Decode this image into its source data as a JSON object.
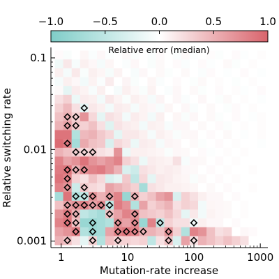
{
  "chart_data": {
    "type": "heatmap",
    "title": "",
    "colorbar": {
      "label": "Relative error (median)",
      "range": [
        -1.0,
        1.0
      ],
      "ticks": [
        -1.0,
        -0.5,
        0.0,
        0.5,
        1.0
      ],
      "tick_labels": [
        "−1.0",
        "−0.5",
        "0.0",
        "0.5",
        "1.0"
      ],
      "colors": {
        "negative": "#7fcdc8",
        "zero": "#ffffff",
        "positive": "#d9646c"
      }
    },
    "x_axis": {
      "label": "Mutation-rate increase",
      "scale": "log",
      "range": [
        0.7,
        1300
      ],
      "ticks": [
        1,
        10,
        100,
        1000
      ],
      "tick_labels": [
        "1",
        "10",
        "100",
        "1000"
      ]
    },
    "y_axis": {
      "label": "Relative switching rate",
      "scale": "log",
      "range": [
        0.00085,
        0.13
      ],
      "ticks": [
        0.001,
        0.01,
        0.1
      ],
      "tick_labels": [
        "0.001",
        "0.01",
        "0.1"
      ]
    },
    "grid": {
      "x_start": 0.8,
      "x_end": 1200,
      "y_start": 0.00091,
      "y_end": 0.12,
      "n_cols": 25,
      "n_rows": 22
    },
    "cells": [
      [
        0.03,
        -0.05,
        0.0,
        0.06,
        -0.04,
        0.05,
        -0.02,
        0.0,
        0.04,
        -0.03,
        0.0,
        -0.04,
        0.03,
        0.0,
        -0.04,
        0.04,
        -0.02,
        0.0,
        0.02,
        -0.03,
        0.0,
        0.03,
        -0.02,
        0.0,
        0.02
      ],
      [
        -0.12,
        0.15,
        -0.06,
        0.1,
        0.05,
        -0.08,
        0.06,
        0.0,
        -0.04,
        0.05,
        0.0,
        -0.05,
        0.04,
        0.0,
        0.03,
        -0.04,
        0.0,
        0.03,
        -0.02,
        0.0,
        0.04,
        -0.03,
        0.0,
        0.02,
        0.0
      ],
      [
        0.1,
        -0.08,
        0.14,
        -0.05,
        0.1,
        0.06,
        -0.07,
        0.08,
        0.0,
        -0.06,
        0.05,
        0.0,
        0.04,
        -0.03,
        0.0,
        0.04,
        0.0,
        -0.04,
        0.03,
        0.0,
        -0.02,
        0.0,
        0.03,
        0.0,
        -0.02
      ],
      [
        -0.08,
        0.1,
        0.05,
        -0.1,
        0.08,
        -0.04,
        0.12,
        0.0,
        0.07,
        -0.05,
        0.0,
        0.06,
        -0.04,
        0.0,
        0.03,
        0.0,
        -0.03,
        0.04,
        0.0,
        0.02,
        0.0,
        -0.03,
        0.0,
        0.02,
        0.0
      ],
      [
        0.04,
        -0.2,
        0.12,
        0.08,
        -0.06,
        0.1,
        0.0,
        -0.08,
        0.1,
        0.04,
        -0.05,
        0.08,
        0.0,
        -0.04,
        0.05,
        0.0,
        0.04,
        -0.03,
        0.0,
        0.03,
        0.0,
        0.02,
        -0.02,
        0.0,
        0.03
      ],
      [
        0.2,
        0.3,
        -0.15,
        0.12,
        0.1,
        -0.1,
        0.15,
        0.08,
        -0.05,
        0.1,
        0.06,
        -0.08,
        0.07,
        0.0,
        0.05,
        -0.04,
        0.0,
        0.05,
        0.0,
        -0.03,
        0.04,
        0.0,
        0.02,
        0.0,
        -0.02
      ],
      [
        0.3,
        0.45,
        0.2,
        -0.2,
        0.15,
        0.1,
        -0.1,
        0.12,
        0.1,
        -0.08,
        0.08,
        0.05,
        -0.06,
        0.06,
        0.0,
        0.05,
        -0.04,
        0.0,
        0.04,
        0.0,
        -0.03,
        0.03,
        0.0,
        0.02,
        0.0
      ],
      [
        0.4,
        0.5,
        0.3,
        0.7,
        0.25,
        -0.2,
        0.2,
        0.15,
        -0.1,
        0.12,
        0.08,
        -0.1,
        0.1,
        0.0,
        0.06,
        -0.05,
        0.05,
        0.0,
        0.04,
        -0.03,
        0.0,
        0.03,
        0.0,
        -0.02,
        0.02
      ],
      [
        0.5,
        0.6,
        0.35,
        0.3,
        0.4,
        0.2,
        -0.25,
        0.18,
        0.12,
        0.1,
        -0.1,
        0.1,
        0.08,
        -0.06,
        0.05,
        0.05,
        0.0,
        0.04,
        0.0,
        0.03,
        -0.03,
        0.0,
        0.02,
        0.0,
        0.02
      ],
      [
        0.9,
        0.9,
        -0.6,
        0.45,
        0.5,
        0.35,
        0.25,
        -0.2,
        0.15,
        0.15,
        0.1,
        -0.08,
        0.1,
        0.06,
        -0.05,
        0.04,
        0.05,
        0.0,
        0.03,
        0.0,
        0.04,
        0.0,
        -0.02,
        0.0,
        0.02
      ],
      [
        0.95,
        0.85,
        -0.7,
        0.55,
        0.4,
        0.35,
        -0.3,
        0.25,
        0.18,
        -0.15,
        0.12,
        0.1,
        -0.08,
        0.07,
        0.05,
        0.0,
        0.04,
        -0.03,
        0.0,
        0.03,
        0.0,
        0.02,
        0.0,
        0.0,
        -0.02
      ],
      [
        0.5,
        0.4,
        0.3,
        0.25,
        0.3,
        0.2,
        0.15,
        0.7,
        -0.15,
        0.1,
        0.1,
        0.08,
        0.06,
        -0.05,
        0.05,
        0.04,
        0.0,
        0.03,
        -0.02,
        0.0,
        0.02,
        0.0,
        0.02,
        0.0,
        0.0
      ],
      [
        0.8,
        0.6,
        0.7,
        0.9,
        0.7,
        0.6,
        0.7,
        0.8,
        0.3,
        0.2,
        -0.15,
        0.12,
        0.1,
        0.08,
        0.2,
        -0.06,
        0.05,
        0.04,
        0.0,
        0.03,
        0.0,
        0.02,
        0.0,
        0.0,
        0.0
      ],
      [
        0.85,
        0.9,
        0.5,
        0.75,
        0.8,
        0.85,
        0.7,
        0.5,
        -0.3,
        -0.4,
        0.2,
        0.15,
        0.1,
        0.12,
        0.1,
        0.05,
        0.04,
        0.0,
        0.03,
        0.0,
        0.02,
        0.0,
        0.0,
        0.02,
        0.0
      ],
      [
        0.9,
        0.8,
        0.3,
        0.2,
        0.4,
        0.25,
        -0.3,
        -0.2,
        0.35,
        -0.5,
        0.25,
        -0.2,
        0.15,
        0.12,
        0.08,
        0.06,
        -0.05,
        0.04,
        0.0,
        0.03,
        0.0,
        0.02,
        0.0,
        0.0,
        0.0
      ],
      [
        0.8,
        0.7,
        -0.4,
        0.35,
        0.25,
        0.2,
        0.6,
        0.5,
        0.4,
        0.3,
        -0.7,
        0.2,
        0.15,
        0.1,
        0.1,
        0.08,
        0.06,
        0.0,
        0.04,
        0.0,
        0.03,
        0.0,
        0.0,
        0.02,
        0.0
      ],
      [
        -0.7,
        0.9,
        -0.6,
        -0.5,
        0.7,
        0.5,
        0.6,
        0.8,
        -0.8,
        0.5,
        0.3,
        0.4,
        0.6,
        0.7,
        -0.3,
        0.3,
        0.2,
        0.1,
        0.05,
        0.05,
        0.0,
        0.03,
        0.0,
        0.0,
        0.0
      ],
      [
        0.4,
        0.6,
        0.7,
        0.8,
        0.6,
        0.75,
        -0.5,
        0.85,
        0.7,
        -0.6,
        0.6,
        0.3,
        0.4,
        0.5,
        0.2,
        0.3,
        0.25,
        -0.1,
        0.06,
        0.05,
        0.04,
        0.0,
        0.02,
        0.0,
        0.0
      ],
      [
        0.7,
        0.85,
        0.5,
        -0.5,
        -0.6,
        -0.7,
        0.4,
        0.6,
        0.8,
        0.7,
        0.4,
        0.35,
        0.3,
        0.4,
        0.25,
        -0.2,
        0.15,
        -0.1,
        0.08,
        0.05,
        0.04,
        0.0,
        0.02,
        0.0,
        0.0
      ],
      [
        0.8,
        0.9,
        0.4,
        -0.8,
        -0.8,
        -0.7,
        -0.6,
        0.7,
        0.6,
        0.75,
        -0.8,
        0.8,
        -0.5,
        0.3,
        0.2,
        0.2,
        -0.1,
        0.1,
        0.05,
        0.05,
        0.0,
        0.03,
        0.0,
        0.0,
        0.0
      ],
      [
        0.6,
        0.7,
        0.85,
        -0.6,
        -0.75,
        -0.7,
        0.6,
        0.8,
        0.9,
        0.8,
        0.5,
        0.5,
        0.4,
        0.7,
        0.3,
        -0.6,
        0.8,
        0.7,
        0.4,
        0.2,
        0.25,
        0.0,
        0.05,
        0.03,
        0.0
      ],
      [
        0.5,
        0.4,
        0.2,
        -0.2,
        0.3,
        -0.6,
        0.4,
        0.3,
        0.3,
        0.25,
        0.3,
        -0.5,
        0.2,
        0.4,
        -0.3,
        0.6,
        0.2,
        0.5,
        0.4,
        0.3,
        0.4,
        0.3,
        0.2,
        0.0,
        0.0
      ]
    ],
    "markers": [
      [
        6,
        3
      ],
      [
        7,
        1
      ],
      [
        7,
        2
      ],
      [
        8,
        1
      ],
      [
        8,
        2
      ],
      [
        10,
        1
      ],
      [
        11,
        2
      ],
      [
        11,
        3
      ],
      [
        11,
        4
      ],
      [
        13,
        1
      ],
      [
        13,
        2
      ],
      [
        13,
        3
      ],
      [
        14,
        1
      ],
      [
        15,
        1
      ],
      [
        15,
        3
      ],
      [
        16,
        2
      ],
      [
        16,
        3
      ],
      [
        16,
        4
      ],
      [
        16,
        6
      ],
      [
        16,
        9
      ],
      [
        17,
        1
      ],
      [
        17,
        2
      ],
      [
        17,
        3
      ],
      [
        17,
        4
      ],
      [
        17,
        5
      ],
      [
        17,
        6
      ],
      [
        18,
        1
      ],
      [
        18,
        2
      ],
      [
        18,
        6
      ],
      [
        18,
        9
      ],
      [
        19,
        1
      ],
      [
        19,
        2
      ],
      [
        19,
        4
      ],
      [
        19,
        7
      ],
      [
        19,
        9
      ],
      [
        19,
        12
      ],
      [
        19,
        16
      ],
      [
        20,
        2
      ],
      [
        20,
        4
      ],
      [
        20,
        7
      ],
      [
        20,
        8
      ],
      [
        20,
        9
      ],
      [
        20,
        10
      ],
      [
        20,
        13
      ],
      [
        21,
        1
      ],
      [
        21,
        4
      ],
      [
        21,
        7
      ],
      [
        21,
        13
      ],
      [
        21,
        16
      ]
    ]
  }
}
